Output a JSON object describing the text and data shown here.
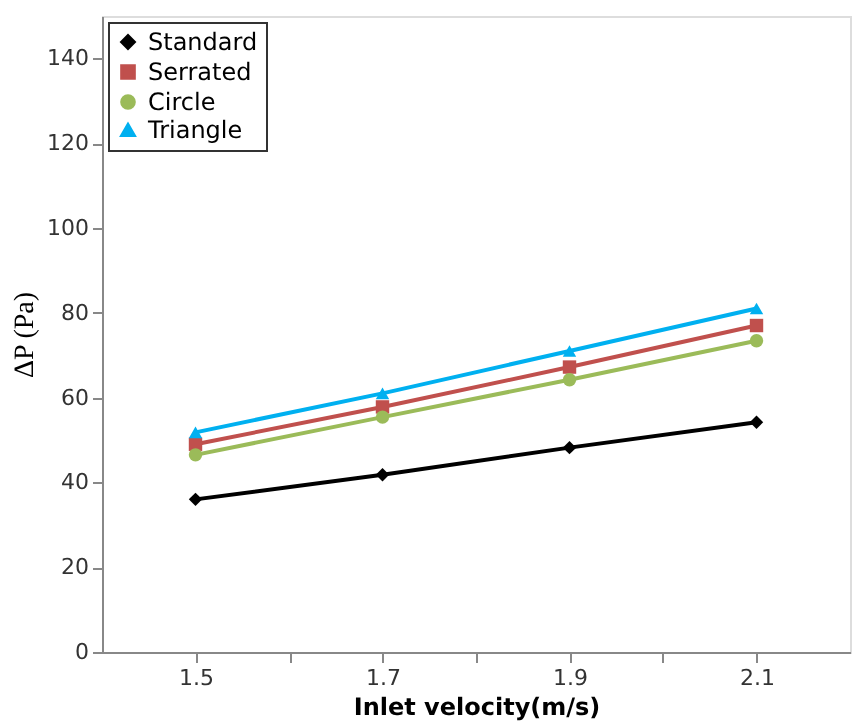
{
  "chart_data": {
    "type": "line",
    "xlabel": "Inlet velocity(m/s)",
    "ylabel": "ΔP (Pa)",
    "x": [
      1.5,
      1.7,
      1.9,
      2.1
    ],
    "series": [
      {
        "name": "Standard",
        "color": "#000000",
        "marker": "diamond",
        "values": [
          36,
          41.8,
          48.2,
          54.2
        ]
      },
      {
        "name": "Serrated",
        "color": "#c0504d",
        "marker": "square",
        "values": [
          49,
          57.8,
          67.2,
          77
        ]
      },
      {
        "name": "Circle",
        "color": "#9bbb59",
        "marker": "circle",
        "values": [
          46.5,
          55.4,
          64.2,
          73.4
        ]
      },
      {
        "name": "Triangle",
        "color": "#00b0f0",
        "marker": "triangle",
        "values": [
          51.8,
          61,
          71,
          81
        ]
      }
    ],
    "xlim": [
      1.4,
      2.2
    ],
    "xticks": [
      1.5,
      {
        "value": 1.6,
        "label": null
      },
      1.7,
      {
        "value": 1.8,
        "label": null
      },
      1.9,
      {
        "value": 2.0,
        "label": null
      },
      2.1
    ],
    "ylim": [
      0,
      150
    ],
    "yticks": [
      0,
      20,
      40,
      60,
      80,
      100,
      120,
      140
    ],
    "grid": false,
    "legend": "top left",
    "line_style": "solid"
  }
}
